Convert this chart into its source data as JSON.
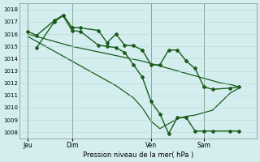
{
  "background_color": "#d4eef0",
  "grid_color": "#b8d8d8",
  "line_color": "#1a5c1a",
  "xlabel_text": "Pression niveau de la mer( hPa )",
  "ylim": [
    1007.5,
    1018.5
  ],
  "yticks": [
    1008,
    1009,
    1010,
    1011,
    1012,
    1013,
    1014,
    1015,
    1016,
    1017,
    1018
  ],
  "xtick_labels": [
    "Jeu",
    "Dim",
    "Ven",
    "Sam"
  ],
  "xtick_positions": [
    0.5,
    3.0,
    7.5,
    10.5
  ],
  "vline_positions": [
    0.5,
    3.0,
    7.5,
    10.5
  ],
  "xlim": [
    0.0,
    13.5
  ],
  "series": [
    {
      "x": [
        0.5,
        1.0,
        2.0,
        2.5,
        3.0,
        3.5,
        4.5,
        5.0,
        5.5,
        6.0,
        6.5,
        7.0,
        7.5,
        8.0,
        8.5,
        9.0,
        9.5,
        10.0,
        10.5,
        11.0,
        12.0,
        12.5
      ],
      "y": [
        1016.2,
        1015.9,
        1017.1,
        1017.55,
        1016.55,
        1016.5,
        1016.3,
        1015.3,
        1016.0,
        1015.1,
        1015.05,
        1014.7,
        1013.5,
        1013.5,
        1014.7,
        1014.7,
        1013.8,
        1013.2,
        1011.7,
        1011.5,
        1011.6,
        1011.7
      ],
      "marker": "D",
      "markersize": 2.0,
      "linewidth": 1.0
    },
    {
      "x": [
        1.0,
        2.0,
        2.5,
        3.0,
        3.5,
        4.5,
        5.0,
        5.5,
        6.0,
        6.5,
        7.0,
        7.5,
        8.0,
        8.5,
        9.0,
        9.5,
        10.0,
        10.5,
        11.0,
        12.0,
        12.5
      ],
      "y": [
        1014.9,
        1017.0,
        1017.5,
        1016.3,
        1016.2,
        1015.1,
        1015.0,
        1014.9,
        1014.5,
        1013.5,
        1012.5,
        1010.5,
        1009.5,
        1007.9,
        1009.2,
        1009.2,
        1008.1,
        1008.1,
        1008.1,
        1008.1,
        1008.1
      ],
      "marker": "D",
      "markersize": 2.0,
      "linewidth": 1.0
    },
    {
      "x": [
        0.5,
        1.0,
        1.5,
        2.0,
        2.5,
        3.0,
        3.5,
        4.0,
        4.5,
        5.0,
        5.5,
        6.0,
        6.5,
        7.0,
        7.5,
        8.0,
        8.5,
        9.0,
        9.5,
        10.0,
        10.5,
        11.0,
        11.5,
        12.0,
        12.5
      ],
      "y": [
        1016.0,
        1015.8,
        1015.6,
        1015.4,
        1015.2,
        1015.0,
        1014.85,
        1014.7,
        1014.55,
        1014.4,
        1014.25,
        1014.1,
        1013.95,
        1013.8,
        1013.6,
        1013.4,
        1013.2,
        1013.0,
        1012.8,
        1012.6,
        1012.4,
        1012.2,
        1012.0,
        1011.9,
        1011.7
      ],
      "marker": null,
      "markersize": 0,
      "linewidth": 0.9
    },
    {
      "x": [
        0.5,
        1.0,
        1.5,
        2.0,
        2.5,
        3.0,
        3.5,
        4.0,
        4.5,
        5.0,
        5.5,
        6.0,
        6.5,
        7.0,
        7.5,
        8.0,
        8.5,
        9.0,
        9.5,
        10.0,
        10.5,
        11.0,
        11.5,
        12.0,
        12.5
      ],
      "y": [
        1015.8,
        1015.4,
        1015.0,
        1014.6,
        1014.2,
        1013.8,
        1013.4,
        1013.0,
        1012.6,
        1012.2,
        1011.8,
        1011.3,
        1010.8,
        1010.0,
        1008.9,
        1008.3,
        1008.7,
        1009.1,
        1009.3,
        1009.4,
        1009.6,
        1009.8,
        1010.5,
        1011.2,
        1011.6
      ],
      "marker": null,
      "markersize": 0,
      "linewidth": 0.9
    }
  ]
}
